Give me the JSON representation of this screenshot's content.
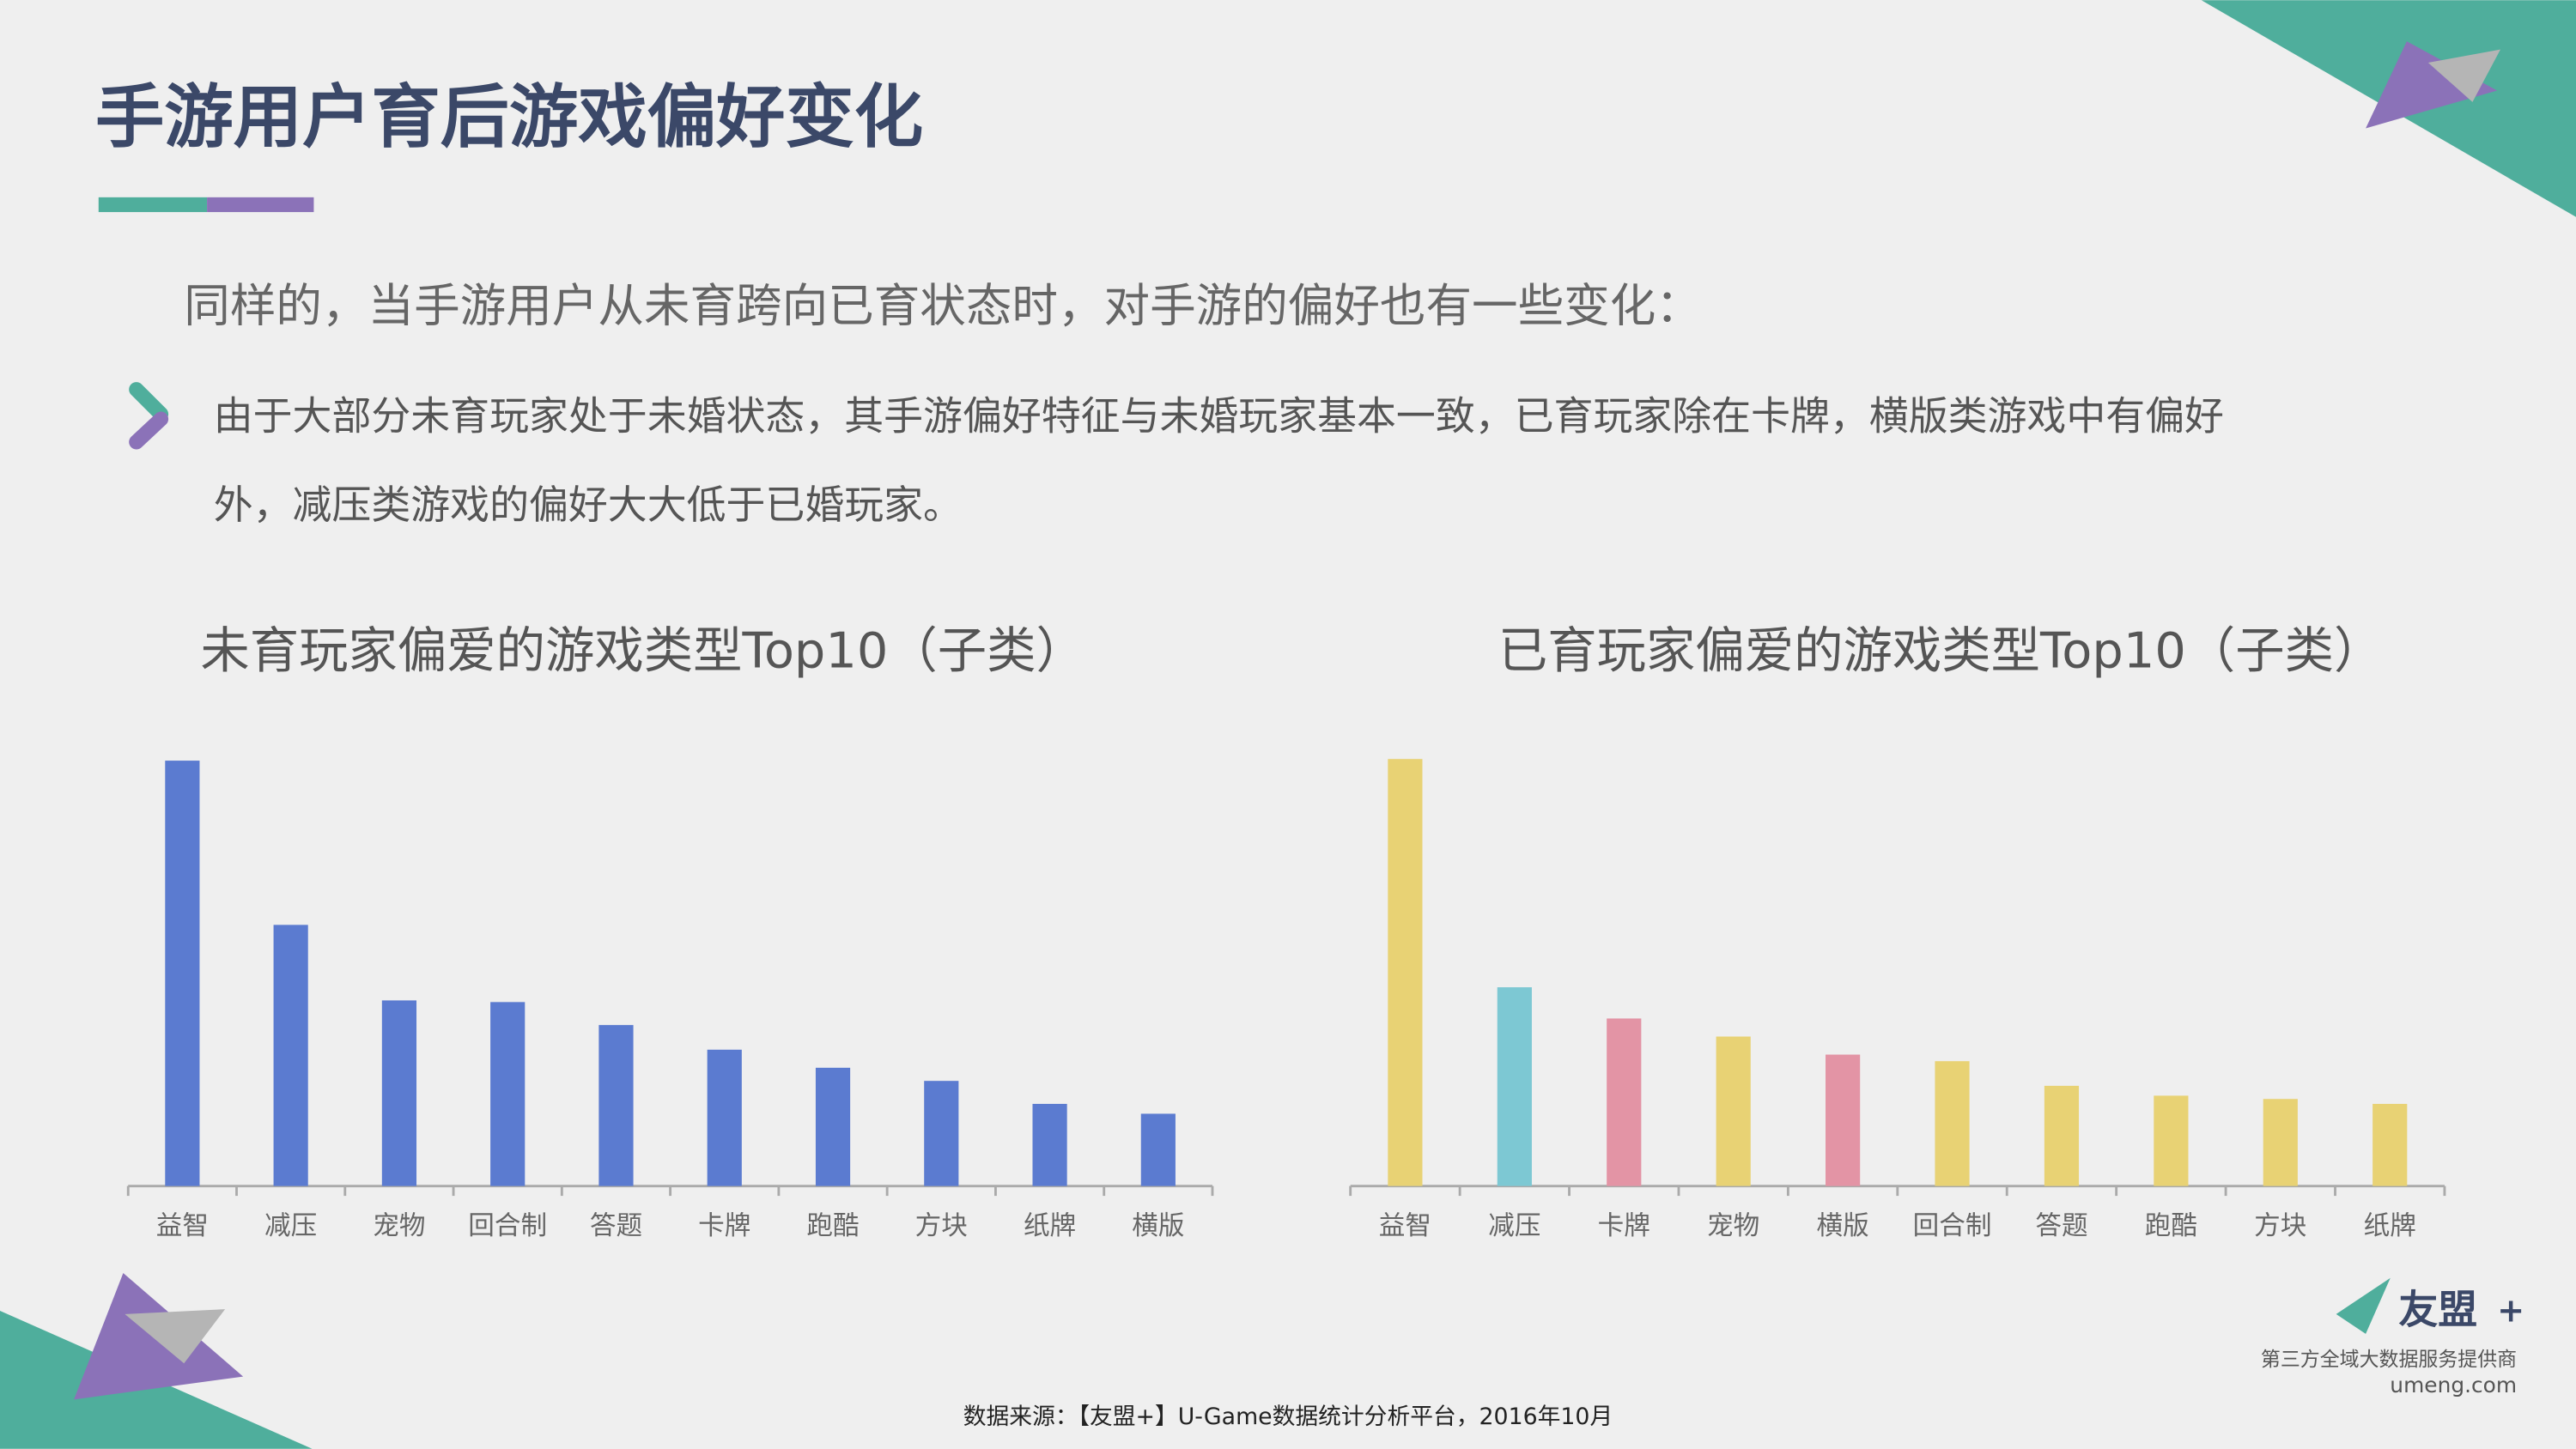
{
  "header": {
    "title": "手游用户育后游戏偏好变化"
  },
  "intro": "同样的，当手游用户从未育跨向已育状态时，对手游的偏好也有一些变化：",
  "bullet": [
    "由于大部分未育玩家处于未婚状态，其手游偏好特征与未婚玩家基本一致，已育玩家除在卡牌，横版类游戏中有偏好",
    "外，减压类游戏的偏好大大低于已婚玩家。"
  ],
  "chart_data": [
    {
      "type": "bar",
      "title": "未育玩家偏爱的游戏类型Top10（子类）",
      "categories": [
        "益智",
        "减压",
        "宠物",
        "回合制",
        "答题",
        "卡牌",
        "跑酷",
        "方块",
        "纸牌",
        "横版"
      ],
      "values": [
        259,
        159,
        113,
        112,
        98,
        83,
        72,
        64,
        50,
        44
      ],
      "colors": [
        "#5b7bd0",
        "#5b7bd0",
        "#5b7bd0",
        "#5b7bd0",
        "#5b7bd0",
        "#5b7bd0",
        "#5b7bd0",
        "#5b7bd0",
        "#5b7bd0",
        "#5b7bd0"
      ]
    },
    {
      "type": "bar",
      "title": "已育玩家偏爱的游戏类型Top10（子类）",
      "categories": [
        "益智",
        "减压",
        "卡牌",
        "宠物",
        "横版",
        "回合制",
        "答题",
        "跑酷",
        "方块",
        "纸牌"
      ],
      "values": [
        260,
        121,
        102,
        91,
        80,
        76,
        61,
        55,
        53,
        50
      ],
      "colors": [
        "#e8d274",
        "#7dc8d3",
        "#e394a5",
        "#e8d274",
        "#e394a5",
        "#e8d274",
        "#e8d274",
        "#e8d274",
        "#e8d274",
        "#e8d274"
      ]
    }
  ],
  "footer": {
    "source": "数据来源：【友盟+】U-Game数据统计分析平台，2016年10月"
  },
  "logo": {
    "name": "友盟",
    "plus": "+",
    "tagline": "第三方全域大数据服务提供商",
    "url": "umeng.com"
  }
}
